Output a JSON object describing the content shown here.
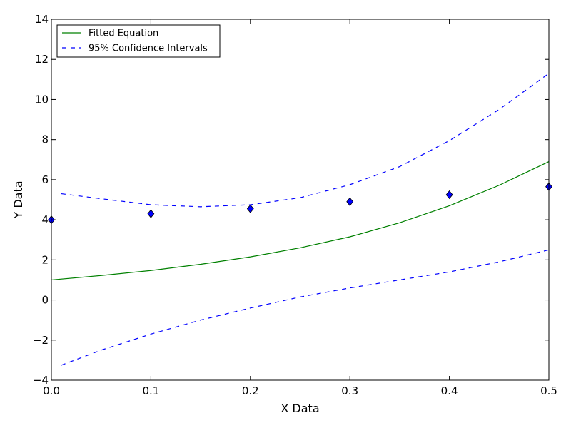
{
  "chart_data": {
    "type": "line",
    "xlabel": "X Data",
    "ylabel": "Y Data",
    "xlim": [
      0.0,
      0.5
    ],
    "ylim": [
      -4,
      14
    ],
    "xticks": [
      0.0,
      0.1,
      0.2,
      0.3,
      0.4,
      0.5
    ],
    "xtick_labels": [
      "0.0",
      "0.1",
      "0.2",
      "0.3",
      "0.4",
      "0.5"
    ],
    "yticks": [
      -4,
      -2,
      0,
      2,
      4,
      6,
      8,
      10,
      12,
      14
    ],
    "ytick_labels": [
      "−4",
      "−2",
      "0",
      "2",
      "4",
      "6",
      "8",
      "10",
      "12",
      "14"
    ],
    "grid": false,
    "legend_position": "top-left",
    "points": {
      "marker": "diamond",
      "color": "#0000ff",
      "x": [
        0.0,
        0.1,
        0.2,
        0.3,
        0.4,
        0.5
      ],
      "y": [
        4.0,
        4.3,
        4.55,
        4.9,
        5.25,
        5.65
      ]
    },
    "series": [
      {
        "name": "Fitted Equation",
        "color": "#008000",
        "style": "solid",
        "x": [
          0.0,
          0.05,
          0.1,
          0.15,
          0.2,
          0.25,
          0.3,
          0.35,
          0.4,
          0.45,
          0.5
        ],
        "y": [
          1.0,
          1.22,
          1.47,
          1.78,
          2.15,
          2.6,
          3.15,
          3.85,
          4.7,
          5.72,
          6.9
        ]
      },
      {
        "name": "95% Confidence Intervals",
        "color": "#0000ff",
        "style": "dashed",
        "x": [
          0.01,
          0.05,
          0.1,
          0.15,
          0.2,
          0.25,
          0.3,
          0.35,
          0.4,
          0.45,
          0.5
        ],
        "y": [
          5.3,
          5.05,
          4.75,
          4.65,
          4.75,
          5.1,
          5.75,
          6.65,
          7.95,
          9.5,
          11.3
        ]
      },
      {
        "name": "",
        "legend": false,
        "color": "#0000ff",
        "style": "dashed",
        "x": [
          0.01,
          0.05,
          0.1,
          0.15,
          0.2,
          0.25,
          0.3,
          0.35,
          0.4,
          0.45,
          0.5
        ],
        "y": [
          -3.25,
          -2.5,
          -1.7,
          -1.0,
          -0.4,
          0.15,
          0.6,
          1.0,
          1.4,
          1.9,
          2.5
        ]
      }
    ]
  }
}
